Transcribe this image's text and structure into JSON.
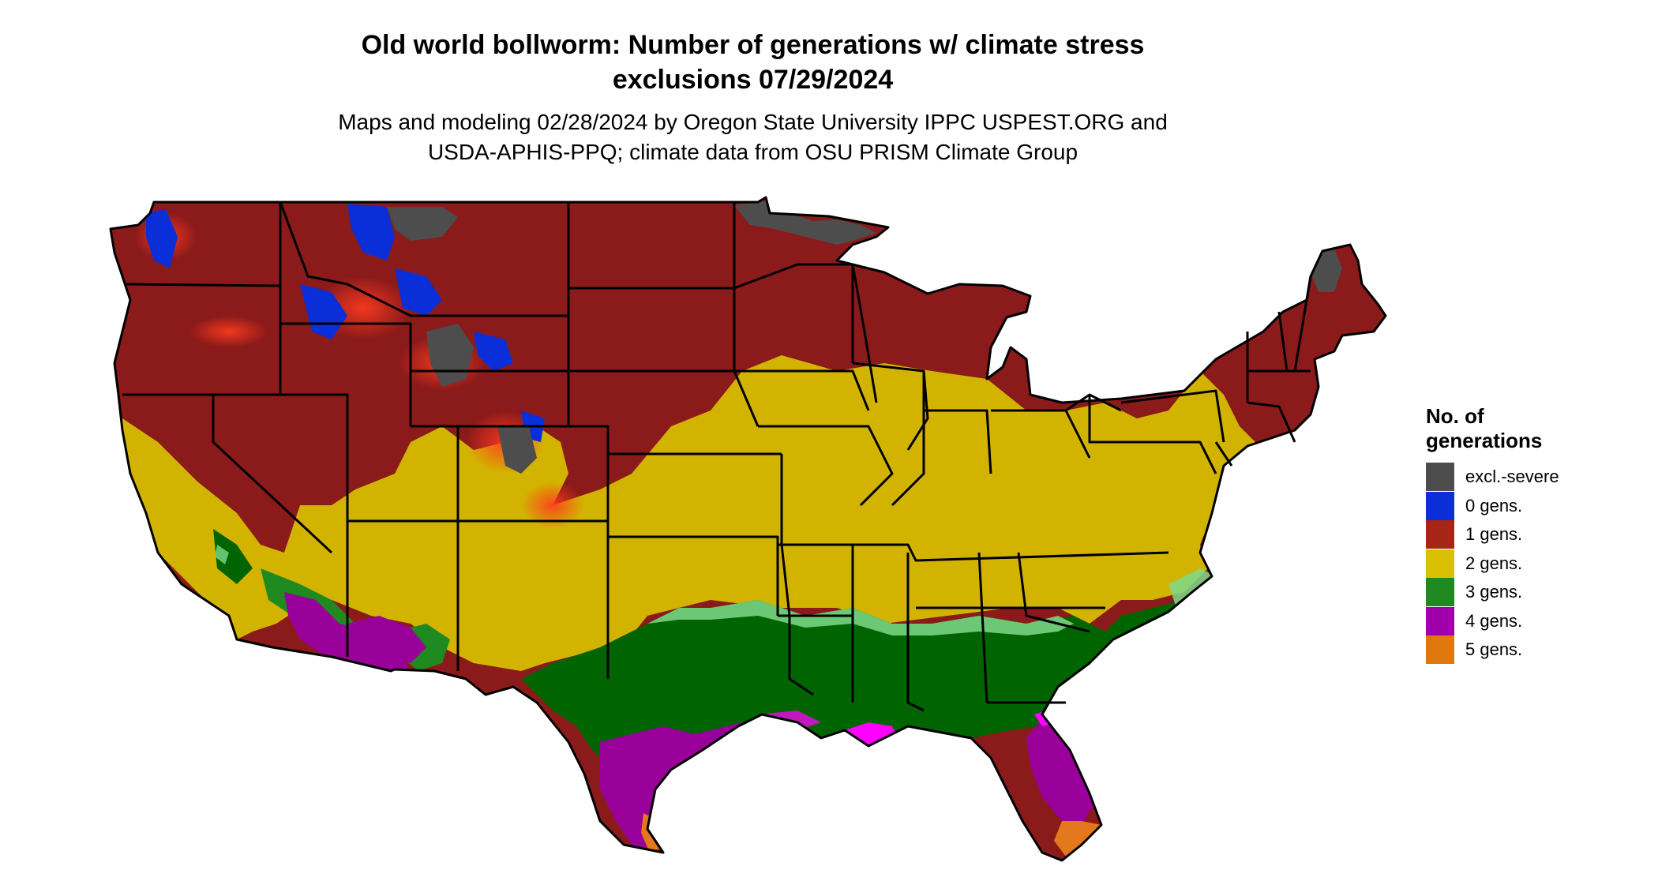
{
  "title": {
    "line1": "Old world bollworm: Number of generations w/ climate stress",
    "line2": "exclusions 07/29/2024"
  },
  "subtitle": {
    "line1": "Maps and modeling 02/28/2024 by Oregon State University IPPC USPEST.ORG and",
    "line2": "USDA-APHIS-PPQ; climate data from OSU PRISM Climate Group"
  },
  "legend": {
    "title_line1": "No. of",
    "title_line2": "generations",
    "items": [
      {
        "label": "excl.-severe",
        "color": "#4d4d4d"
      },
      {
        "label": "0 gens.",
        "color": "#0a2fd8"
      },
      {
        "label": "1 gens.",
        "color": "#a52617"
      },
      {
        "label": "2 gens.",
        "color": "#d9c000"
      },
      {
        "label": "3 gens.",
        "color": "#1f8a1f"
      },
      {
        "label": "4 gens.",
        "color": "#a000aa"
      },
      {
        "label": "5 gens.",
        "color": "#e07810"
      }
    ]
  },
  "map": {
    "region": "contiguous-us",
    "colors": {
      "excluded": "#4d4d4d",
      "zero": "#0a2fd8",
      "one": "#8b1a1a",
      "two": "#d2b400",
      "three": "#006400",
      "three_light": "#7fd98a",
      "four": "#990099",
      "four_bright": "#ff00ff",
      "five": "#e3781c",
      "borders": "#000000"
    }
  }
}
